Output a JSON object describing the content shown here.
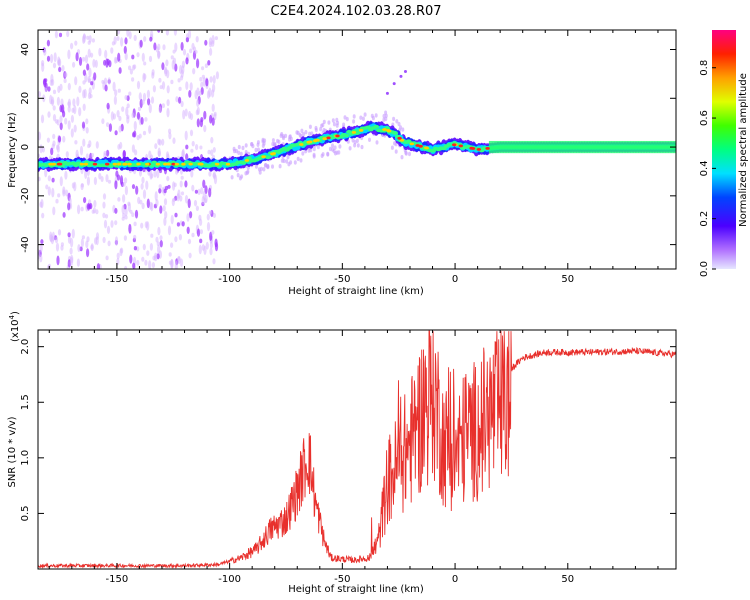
{
  "title": "C2E4.2024.102.03.28.R07",
  "colors": {
    "line": "#e8302c",
    "axis": "#000000"
  },
  "chart_data": [
    {
      "type": "heatmap",
      "xlabel": "Height of straight line (km)",
      "ylabel": "Frequency (Hz)",
      "xlim": [
        -185,
        98
      ],
      "ylim": [
        -50,
        48
      ],
      "xticks": [
        -150,
        -100,
        -50,
        0,
        50
      ],
      "xtick_labels": [
        "-150",
        "-100",
        "-50",
        "0",
        "50"
      ],
      "yticks": [
        -40,
        -20,
        0,
        20,
        40
      ],
      "ytick_labels": [
        "-40",
        "-20",
        "0",
        "20",
        "40"
      ],
      "colorbar": {
        "label": "Normalized spectral amplitude",
        "range": [
          0,
          0.95
        ],
        "ticks": [
          0.0,
          0.2,
          0.4,
          0.6,
          0.8
        ],
        "tick_labels": [
          "0.0",
          "0.2",
          "0.4",
          "0.6",
          "0.8"
        ]
      },
      "ridge": [
        [
          -185,
          -7
        ],
        [
          -160,
          -7
        ],
        [
          -130,
          -7
        ],
        [
          -110,
          -7
        ],
        [
          -100,
          -7
        ],
        [
          -95,
          -6
        ],
        [
          -85,
          -4
        ],
        [
          -75,
          -1
        ],
        [
          -65,
          2
        ],
        [
          -55,
          4
        ],
        [
          -45,
          6
        ],
        [
          -37,
          8
        ],
        [
          -30,
          7
        ],
        [
          -26,
          5
        ],
        [
          -24,
          3
        ],
        [
          -22,
          2
        ],
        [
          -18,
          1
        ],
        [
          -10,
          -1
        ],
        [
          0,
          1
        ],
        [
          10,
          -1
        ],
        [
          20,
          0
        ],
        [
          50,
          0
        ],
        [
          98,
          0
        ]
      ]
    },
    {
      "type": "line",
      "xlabel": "Height of straight line (km)",
      "ylabel": "SNR (10 * v/v)",
      "y_multiplier": "(x10",
      "y_multiplier_exp": "4",
      "y_multiplier_close": ")",
      "xlim": [
        -185,
        98
      ],
      "ylim": [
        0,
        2.15
      ],
      "xticks": [
        -150,
        -100,
        -50,
        0,
        50
      ],
      "xtick_labels": [
        "-150",
        "-100",
        "-50",
        "0",
        "50"
      ],
      "yticks": [
        0.5,
        1.0,
        1.5,
        2.0
      ],
      "ytick_labels": [
        "0.5",
        "1.0",
        "1.5",
        "2.0"
      ],
      "envelope": [
        [
          -185,
          0.03
        ],
        [
          -150,
          0.03
        ],
        [
          -120,
          0.03
        ],
        [
          -105,
          0.04
        ],
        [
          -95,
          0.1
        ],
        [
          -88,
          0.18
        ],
        [
          -82,
          0.35
        ],
        [
          -75,
          0.45
        ],
        [
          -70,
          0.7
        ],
        [
          -65,
          1.05
        ],
        [
          -62,
          0.6
        ],
        [
          -58,
          0.25
        ],
        [
          -55,
          0.1
        ],
        [
          -45,
          0.08
        ],
        [
          -38,
          0.1
        ],
        [
          -34,
          0.3
        ],
        [
          -30,
          0.9
        ],
        [
          -25,
          1.1
        ],
        [
          -20,
          1.3
        ],
        [
          -15,
          1.6
        ],
        [
          -10,
          1.9
        ],
        [
          -5,
          1.3
        ],
        [
          0,
          1.2
        ],
        [
          5,
          1.4
        ],
        [
          10,
          1.45
        ],
        [
          15,
          1.6
        ],
        [
          20,
          1.65
        ],
        [
          25,
          1.8
        ],
        [
          30,
          1.9
        ],
        [
          40,
          1.95
        ],
        [
          60,
          1.95
        ],
        [
          80,
          1.96
        ],
        [
          98,
          1.93
        ]
      ]
    }
  ]
}
